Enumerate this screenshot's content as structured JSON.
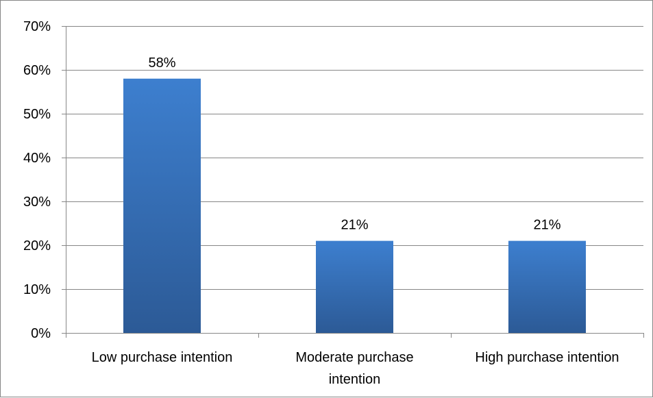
{
  "chart_data": {
    "type": "bar",
    "title": "",
    "xlabel": "",
    "ylabel": "",
    "categories": [
      [
        "Low purchase intention"
      ],
      [
        "Moderate purchase",
        "intention"
      ],
      [
        "High purchase intention"
      ]
    ],
    "values": [
      58,
      21,
      21
    ],
    "data_labels": [
      "58%",
      "21%",
      "21%"
    ],
    "ylim": [
      0,
      70
    ],
    "y_ticks": [
      0,
      10,
      20,
      30,
      40,
      50,
      60,
      70
    ],
    "y_tick_labels": [
      "0%",
      "10%",
      "20%",
      "30%",
      "40%",
      "50%",
      "60%",
      "70%"
    ],
    "grid": true,
    "legend": "none",
    "colors": {
      "bar_top": "#3d7fcf",
      "bar_bottom": "#2c5a96",
      "grid": "#868686",
      "axis": "#868686",
      "frame": "#868686"
    }
  }
}
